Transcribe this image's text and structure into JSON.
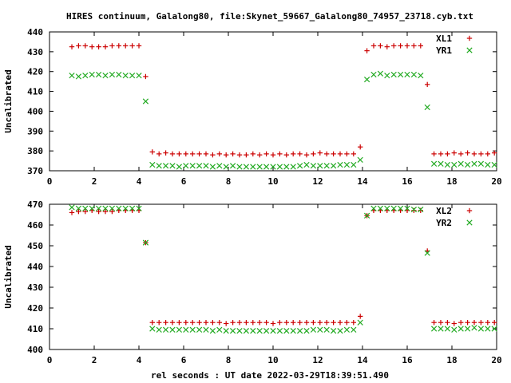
{
  "title": "HIRES continuum, Galalong80, file:Skynet_59667_Galalong80_74957_23718.cyb.txt",
  "xlabel": "rel seconds : UT date 2022-03-29T18:39:51.490",
  "colors": {
    "red": "#cc0000",
    "green": "#22aa22"
  },
  "chart_data": [
    {
      "type": "scatter",
      "title": "HIRES continuum, Galalong80, file:Skynet_59667_Galalong80_74957_23718.cyb.txt",
      "xlabel": "",
      "ylabel": "Uncalibrated",
      "xlim": [
        0,
        20
      ],
      "ylim": [
        370,
        440
      ],
      "xticks": [
        0,
        2,
        4,
        6,
        8,
        10,
        12,
        14,
        16,
        18,
        20
      ],
      "yticks": [
        370,
        380,
        390,
        400,
        410,
        420,
        430,
        440
      ],
      "legend": "top-right",
      "grid": false,
      "series": [
        {
          "name": "XL1",
          "marker": "plus",
          "color": "#cc0000",
          "x": [
            1.0,
            1.3,
            1.6,
            1.9,
            2.2,
            2.5,
            2.8,
            3.1,
            3.4,
            3.7,
            4.0,
            4.3,
            4.6,
            4.9,
            5.2,
            5.5,
            5.8,
            6.1,
            6.4,
            6.7,
            7.0,
            7.3,
            7.6,
            7.9,
            8.2,
            8.5,
            8.8,
            9.1,
            9.4,
            9.7,
            10.0,
            10.3,
            10.6,
            10.9,
            11.2,
            11.5,
            11.8,
            12.1,
            12.4,
            12.7,
            13.0,
            13.3,
            13.6,
            13.9,
            14.2,
            14.5,
            14.8,
            15.1,
            15.4,
            15.7,
            16.0,
            16.3,
            16.6,
            16.9,
            17.2,
            17.5,
            17.8,
            18.1,
            18.4,
            18.7,
            19.0,
            19.3,
            19.6,
            19.9
          ],
          "y": [
            432.5,
            433,
            433,
            432.5,
            432.5,
            432.5,
            433,
            433,
            433,
            433,
            433,
            417.5,
            379.5,
            378.5,
            379,
            378.5,
            378.5,
            378.5,
            378.5,
            378.5,
            378.5,
            378,
            378.5,
            378,
            378.5,
            378,
            378,
            378.5,
            378,
            378.5,
            378,
            378.5,
            378,
            378.5,
            378.5,
            378,
            378.5,
            379,
            378.5,
            378.5,
            378.5,
            378.5,
            378.5,
            382,
            430.5,
            433,
            433,
            432.5,
            433,
            433,
            433,
            433,
            433,
            413.5,
            378.5,
            378.5,
            378.5,
            379,
            378.5,
            379,
            378.5,
            378.5,
            378.5,
            379
          ]
        },
        {
          "name": "YR1",
          "marker": "cross",
          "color": "#22aa22",
          "x": [
            1.0,
            1.3,
            1.6,
            1.9,
            2.2,
            2.5,
            2.8,
            3.1,
            3.4,
            3.7,
            4.0,
            4.3,
            4.6,
            4.9,
            5.2,
            5.5,
            5.8,
            6.1,
            6.4,
            6.7,
            7.0,
            7.3,
            7.6,
            7.9,
            8.2,
            8.5,
            8.8,
            9.1,
            9.4,
            9.7,
            10.0,
            10.3,
            10.6,
            10.9,
            11.2,
            11.5,
            11.8,
            12.1,
            12.4,
            12.7,
            13.0,
            13.3,
            13.6,
            13.9,
            14.2,
            14.5,
            14.8,
            15.1,
            15.4,
            15.7,
            16.0,
            16.3,
            16.6,
            16.9,
            17.2,
            17.5,
            17.8,
            18.1,
            18.4,
            18.7,
            19.0,
            19.3,
            19.6,
            19.9
          ],
          "y": [
            418,
            417.5,
            418,
            418.5,
            418.5,
            418,
            418.5,
            418.5,
            418,
            418,
            418,
            405,
            373,
            372.5,
            372.5,
            372.5,
            372,
            372.5,
            372.5,
            372.5,
            372.5,
            372,
            372.5,
            372,
            372.5,
            372,
            372,
            372,
            372,
            372,
            372,
            372,
            372,
            372,
            372.5,
            373,
            372.5,
            372.5,
            372.5,
            372.5,
            373,
            373,
            373,
            375.5,
            416,
            418.5,
            419,
            418,
            418.5,
            418.5,
            418.5,
            418.5,
            418,
            402,
            373.5,
            373.5,
            373,
            373,
            373.5,
            373,
            373.5,
            373.5,
            373,
            373
          ]
        }
      ]
    },
    {
      "type": "scatter",
      "xlabel": "rel seconds : UT date 2022-03-29T18:39:51.490",
      "ylabel": "Uncalibrated",
      "xlim": [
        0,
        20
      ],
      "ylim": [
        400,
        470
      ],
      "xticks": [
        0,
        2,
        4,
        6,
        8,
        10,
        12,
        14,
        16,
        18,
        20
      ],
      "yticks": [
        400,
        410,
        420,
        430,
        440,
        450,
        460,
        470
      ],
      "legend": "top-right",
      "grid": false,
      "series": [
        {
          "name": "XL2",
          "marker": "plus",
          "color": "#cc0000",
          "x": [
            1.0,
            1.3,
            1.6,
            1.9,
            2.2,
            2.5,
            2.8,
            3.1,
            3.4,
            3.7,
            4.0,
            4.3,
            4.6,
            4.9,
            5.2,
            5.5,
            5.8,
            6.1,
            6.4,
            6.7,
            7.0,
            7.3,
            7.6,
            7.9,
            8.2,
            8.5,
            8.8,
            9.1,
            9.4,
            9.7,
            10.0,
            10.3,
            10.6,
            10.9,
            11.2,
            11.5,
            11.8,
            12.1,
            12.4,
            12.7,
            13.0,
            13.3,
            13.6,
            13.9,
            14.2,
            14.5,
            14.8,
            15.1,
            15.4,
            15.7,
            16.0,
            16.3,
            16.6,
            16.9,
            17.2,
            17.5,
            17.8,
            18.1,
            18.4,
            18.7,
            19.0,
            19.3,
            19.6,
            19.9
          ],
          "y": [
            466,
            466.5,
            466.5,
            467,
            466.5,
            466.5,
            466.5,
            467,
            467,
            467,
            467,
            451.5,
            413,
            413,
            413,
            413,
            413,
            413,
            413,
            413,
            413,
            413,
            413,
            412.5,
            413,
            413,
            413,
            413,
            413,
            413,
            412.5,
            413,
            413,
            413,
            413,
            413,
            413,
            413,
            413,
            413,
            413,
            413,
            413,
            416,
            464.5,
            467,
            467,
            467,
            467,
            467,
            467,
            467,
            467,
            447.5,
            413,
            413,
            413,
            412.5,
            413,
            413,
            413,
            413,
            413,
            413
          ]
        },
        {
          "name": "YR2",
          "marker": "cross",
          "color": "#22aa22",
          "x": [
            1.0,
            1.3,
            1.6,
            1.9,
            2.2,
            2.5,
            2.8,
            3.1,
            3.4,
            3.7,
            4.0,
            4.3,
            4.6,
            4.9,
            5.2,
            5.5,
            5.8,
            6.1,
            6.4,
            6.7,
            7.0,
            7.3,
            7.6,
            7.9,
            8.2,
            8.5,
            8.8,
            9.1,
            9.4,
            9.7,
            10.0,
            10.3,
            10.6,
            10.9,
            11.2,
            11.5,
            11.8,
            12.1,
            12.4,
            12.7,
            13.0,
            13.3,
            13.6,
            13.9,
            14.2,
            14.5,
            14.8,
            15.1,
            15.4,
            15.7,
            16.0,
            16.3,
            16.6,
            16.9,
            17.2,
            17.5,
            17.8,
            18.1,
            18.4,
            18.7,
            19.0,
            19.3,
            19.6,
            19.9
          ],
          "y": [
            468.5,
            468,
            468,
            468,
            468,
            468,
            468,
            468,
            468,
            468,
            468,
            451.5,
            410,
            409.5,
            409.5,
            409.5,
            409.5,
            409.5,
            409.5,
            409.5,
            409.5,
            409,
            409.5,
            409,
            409,
            409,
            409,
            409,
            409,
            409,
            409,
            409,
            409,
            409,
            409,
            409,
            409.5,
            409.5,
            409.5,
            409,
            409,
            409.5,
            409.5,
            413,
            464.5,
            468,
            468,
            468,
            468,
            468,
            468,
            467.5,
            467.5,
            446.5,
            410,
            410,
            410,
            409.5,
            410,
            410,
            410.5,
            410,
            410,
            410
          ]
        }
      ]
    }
  ]
}
